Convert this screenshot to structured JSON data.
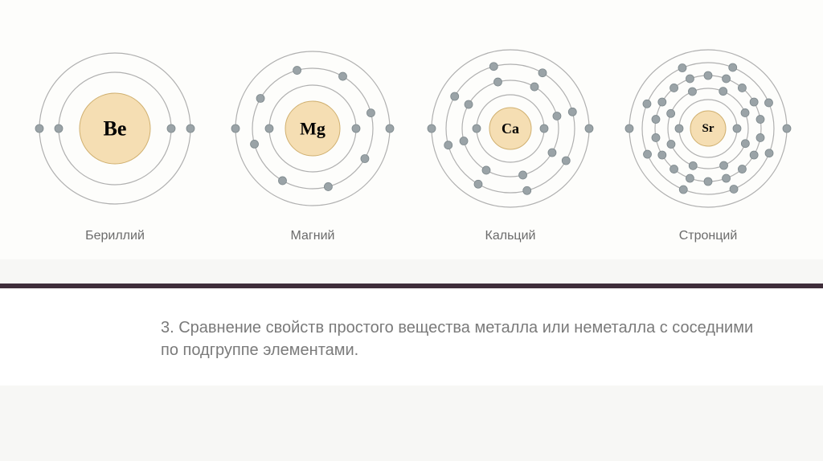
{
  "background_color": "#fdfdfb",
  "divider_color": "#3f2d3a",
  "label_fontsize": 16,
  "label_color": "#6b6b6b",
  "caption_fontsize": 20,
  "caption_color": "#7a7a7a",
  "shell_stroke": "#b0b0b0",
  "shell_stroke_width": 1.2,
  "electron_fill": "#9aa3a7",
  "electron_stroke": "#7d888c",
  "electron_radius": 5,
  "nucleus_fill": "#f5deb3",
  "nucleus_stroke": "#d0b070",
  "symbol_color": "#000000",
  "symbol_fontfamily": "Georgia, serif",
  "symbol_fontweight": "bold",
  "atoms": [
    {
      "id": "be",
      "symbol": "Be",
      "label": "Бериллий",
      "svg_size": 220,
      "nucleus_r": 44,
      "symbol_fontsize": 26,
      "shells": [
        {
          "r": 70,
          "electrons": [
            90,
            270
          ]
        },
        {
          "r": 94,
          "electrons": [
            90,
            270
          ]
        }
      ]
    },
    {
      "id": "mg",
      "symbol": "Mg",
      "label": "Магний",
      "svg_size": 220,
      "nucleus_r": 34,
      "symbol_fontsize": 22,
      "shells": [
        {
          "r": 54,
          "electrons": [
            90,
            270
          ]
        },
        {
          "r": 75,
          "electrons": [
            30,
            75,
            120,
            210,
            255,
            300,
            165,
            345
          ]
        },
        {
          "r": 96,
          "electrons": [
            90,
            270
          ]
        }
      ]
    },
    {
      "id": "ca",
      "symbol": "Ca",
      "label": "Кальций",
      "svg_size": 220,
      "nucleus_r": 26,
      "symbol_fontsize": 18,
      "shells": [
        {
          "r": 42,
          "electrons": [
            90,
            270
          ]
        },
        {
          "r": 60,
          "electrons": [
            30,
            75,
            120,
            165,
            210,
            255,
            300,
            345
          ]
        },
        {
          "r": 80,
          "electrons": [
            30,
            75,
            120,
            165,
            210,
            255,
            300,
            345
          ]
        },
        {
          "r": 98,
          "electrons": [
            90,
            270
          ]
        }
      ]
    },
    {
      "id": "sr",
      "symbol": "Sr",
      "label": "Стронций",
      "svg_size": 220,
      "nucleus_r": 22,
      "symbol_fontsize": 15,
      "shells": [
        {
          "r": 36,
          "electrons": [
            90,
            270
          ]
        },
        {
          "r": 50,
          "electrons": [
            22,
            67,
            112,
            157,
            202,
            247,
            292,
            337
          ]
        },
        {
          "r": 66,
          "electrons": [
            0,
            20,
            40,
            60,
            80,
            100,
            120,
            140,
            160,
            180,
            200,
            220,
            240,
            260,
            280,
            300,
            320,
            340
          ]
        },
        {
          "r": 82,
          "electrons": [
            22,
            67,
            112,
            157,
            202,
            247,
            292,
            337
          ]
        },
        {
          "r": 98,
          "electrons": [
            90,
            270
          ]
        }
      ]
    }
  ],
  "caption": "3. Сравнение свойств простого вещества металла или неметалла с соседними по подгруппе элементами."
}
